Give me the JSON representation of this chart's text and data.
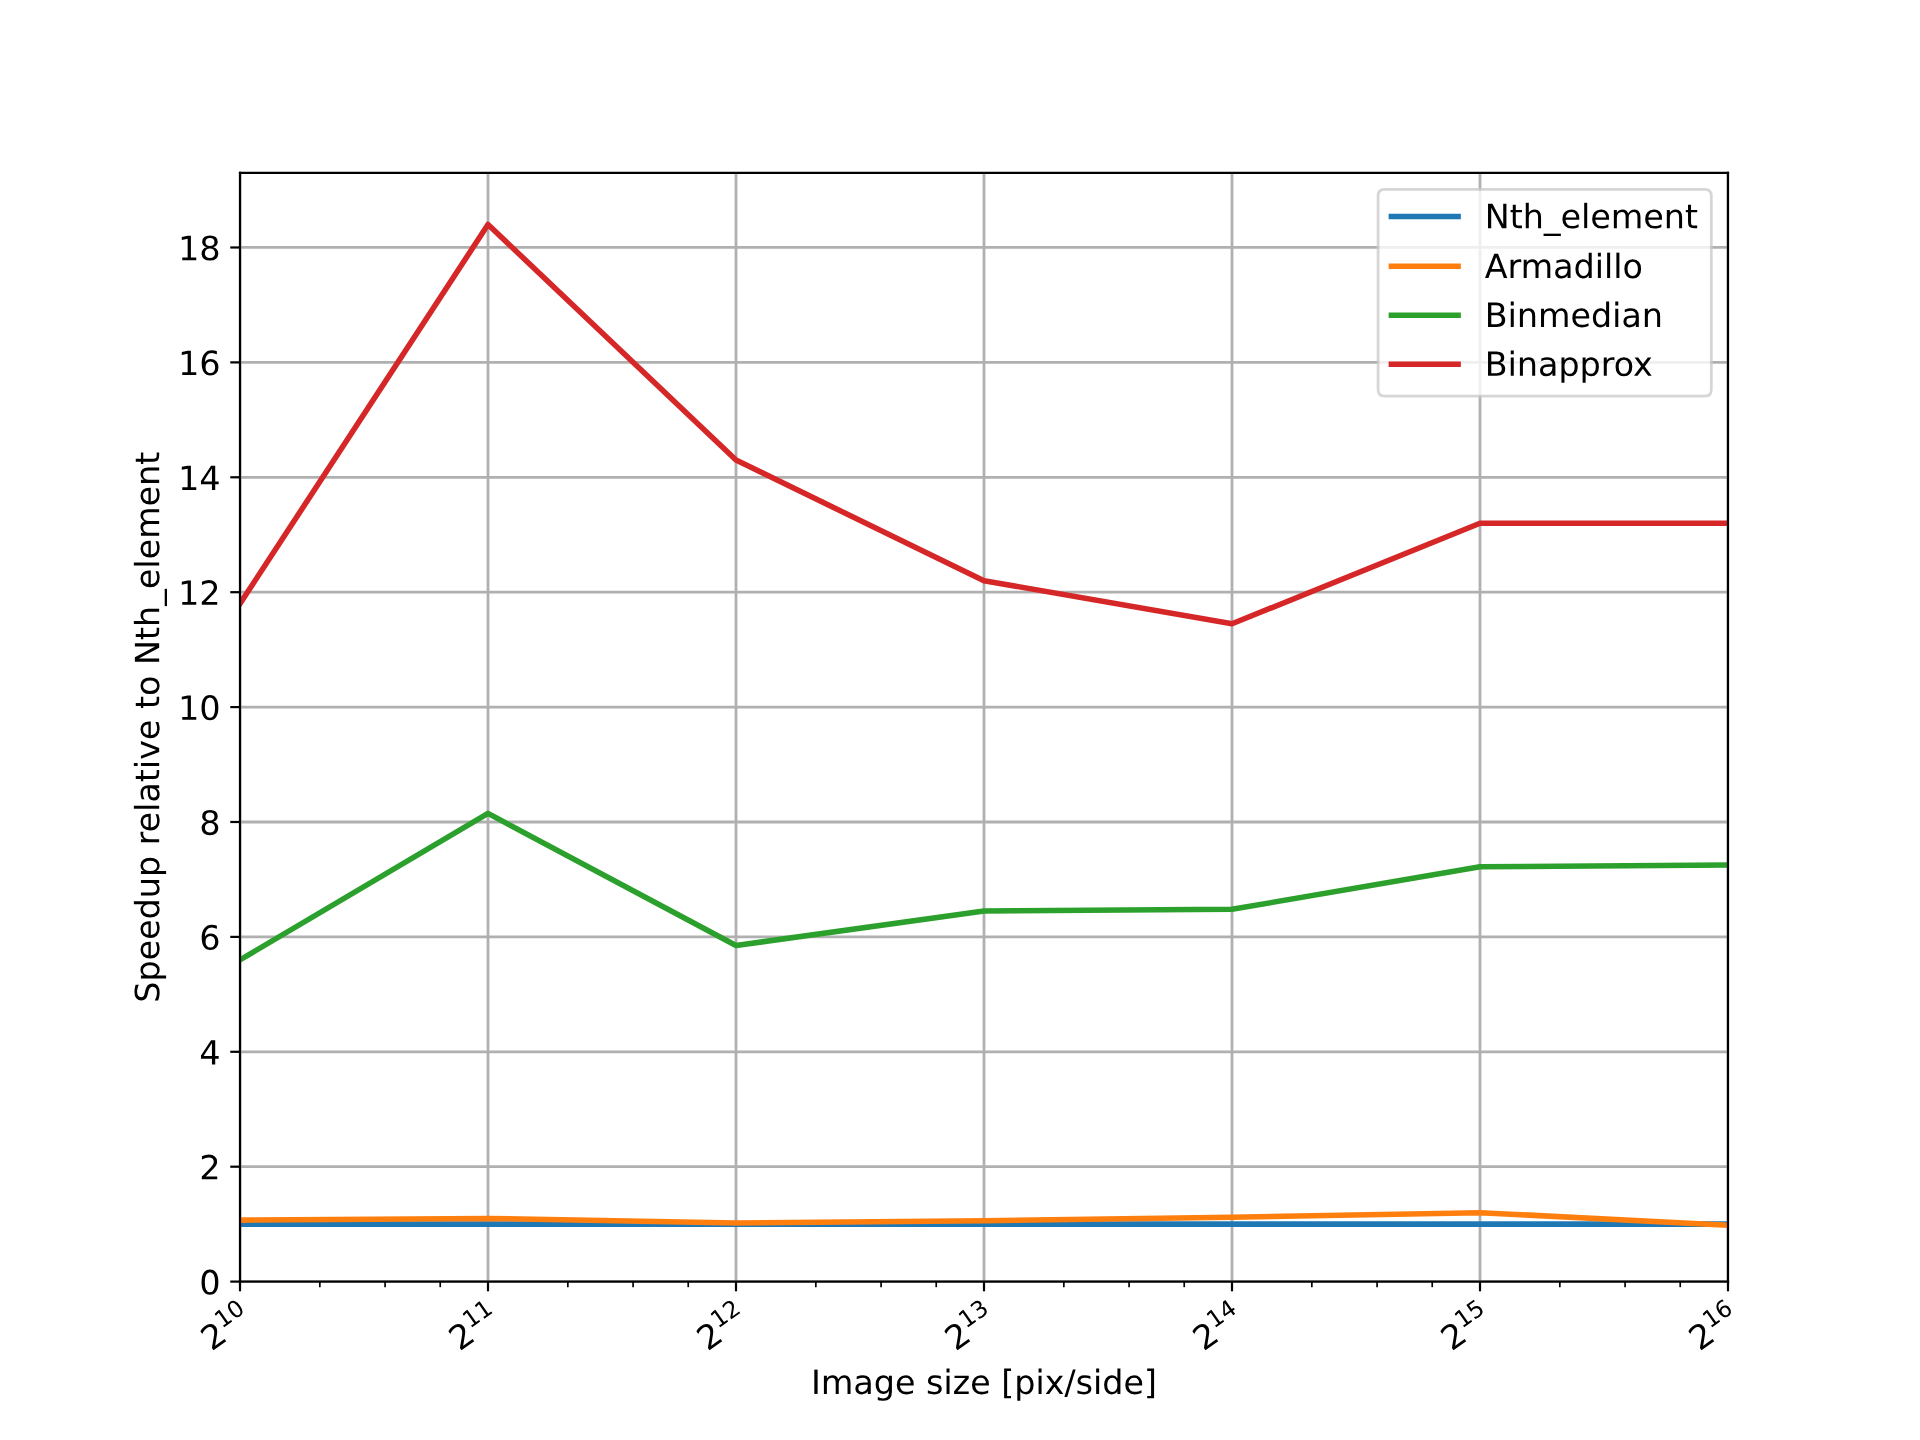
{
  "chart_data": {
    "type": "line",
    "xlabel": "Image size [pix/side]",
    "ylabel": "Speedup relative to Nth_element",
    "x": [
      1024,
      2048,
      4096,
      8192,
      16384,
      32768,
      65536
    ],
    "log": "x",
    "xlim": [
      1024,
      65536
    ],
    "xticks": [
      {
        "value": 1024,
        "label": "2$^{10}$"
      },
      {
        "value": 2048,
        "label": "2$^{11}$"
      },
      {
        "value": 4096,
        "label": "2$^{12}$"
      },
      {
        "value": 8192,
        "label": "2$^{13}$"
      },
      {
        "value": 16384,
        "label": "2$^{14}$"
      },
      {
        "value": 32768,
        "label": "2$^{15}$"
      },
      {
        "value": 65536,
        "label": "2$^{16}$"
      }
    ],
    "ylim": [
      0,
      19.3
    ],
    "yticks": [
      0,
      2,
      4,
      6,
      8,
      10,
      12,
      14,
      16,
      18
    ],
    "grid": true,
    "legend": "top right",
    "series": [
      {
        "name": "Nth_element",
        "color": "#1f77b4",
        "values": [
          1.0,
          1.0,
          1.0,
          1.0,
          1.0,
          1.0,
          1.0
        ]
      },
      {
        "name": "Armadillo",
        "color": "#ff7f0e",
        "values": [
          1.07,
          1.1,
          1.02,
          1.06,
          1.12,
          1.2,
          0.98
        ]
      },
      {
        "name": "Binmedian",
        "color": "#2ca02c",
        "values": [
          5.6,
          8.15,
          5.85,
          6.45,
          6.48,
          7.22,
          7.25
        ]
      },
      {
        "name": "Binapprox",
        "color": "#d62728",
        "values": [
          11.8,
          18.4,
          14.3,
          12.2,
          11.45,
          13.2,
          13.2
        ]
      }
    ]
  }
}
